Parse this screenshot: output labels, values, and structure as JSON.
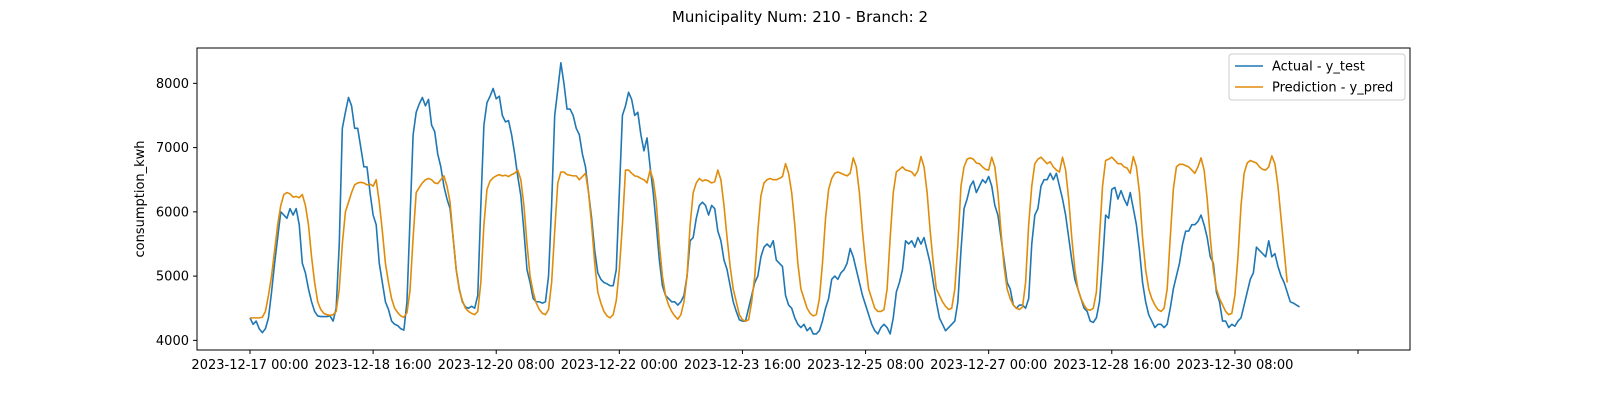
{
  "chart_data": {
    "type": "line",
    "title": "Municipality Num: 210 - Branch: 2",
    "xlabel": "",
    "ylabel": "consumption_kwh",
    "x_start": "2023-12-17 00:00",
    "x_step_hours": 1,
    "ylim": [
      3850,
      8550
    ],
    "yticks": [
      4000,
      5000,
      6000,
      7000,
      8000
    ],
    "xtick_labels": [
      "2023-12-17 00:00",
      "2023-12-18 16:00",
      "2023-12-20 08:00",
      "2023-12-22 00:00",
      "2023-12-23 16:00",
      "2023-12-25 08:00",
      "2023-12-27 00:00",
      "2023-12-28 16:00",
      "2023-12-30 08:00",
      ""
    ],
    "legend_position": "upper right",
    "grid": false,
    "series": [
      {
        "name": "Actual - y_test",
        "color": "#1f77b4",
        "values": [
          4350,
          4250,
          4300,
          4180,
          4120,
          4180,
          4350,
          4750,
          5200,
          5600,
          6000,
          5950,
          5900,
          6050,
          5950,
          6050,
          5800,
          5200,
          5050,
          4800,
          4600,
          4450,
          4380,
          4370,
          4370,
          4370,
          4380,
          4300,
          4500,
          5500,
          7300,
          7550,
          7780,
          7650,
          7300,
          7300,
          7000,
          6700,
          6700,
          6300,
          5950,
          5800,
          5200,
          4900,
          4600,
          4480,
          4300,
          4250,
          4230,
          4180,
          4160,
          4600,
          5900,
          7200,
          7550,
          7680,
          7780,
          7650,
          7750,
          7350,
          7250,
          6900,
          6700,
          6400,
          6200,
          6050,
          5600,
          5100,
          4800,
          4600,
          4520,
          4500,
          4530,
          4500,
          4700,
          6100,
          7350,
          7700,
          7800,
          7920,
          7760,
          7800,
          7500,
          7400,
          7420,
          7200,
          6900,
          6550,
          6250,
          5700,
          5100,
          4900,
          4650,
          4600,
          4600,
          4580,
          4600,
          5000,
          6100,
          7500,
          7900,
          8320,
          8000,
          7600,
          7600,
          7500,
          7300,
          7200,
          6900,
          6700,
          6300,
          5900,
          5400,
          5050,
          4950,
          4900,
          4880,
          4850,
          4850,
          5100,
          6300,
          7500,
          7650,
          7860,
          7750,
          7500,
          7550,
          7200,
          6950,
          7150,
          6700,
          6300,
          5800,
          5250,
          4850,
          4700,
          4650,
          4600,
          4600,
          4550,
          4600,
          4700,
          5000,
          5550,
          5600,
          5900,
          6100,
          6150,
          6100,
          5950,
          6100,
          6050,
          5700,
          5550,
          5250,
          5100,
          4850,
          4600,
          4450,
          4320,
          4300,
          4300,
          4500,
          4700,
          4900,
          5000,
          5300,
          5450,
          5500,
          5450,
          5550,
          5250,
          5200,
          5150,
          4700,
          4550,
          4500,
          4350,
          4250,
          4200,
          4250,
          4150,
          4200,
          4100,
          4100,
          4150,
          4300,
          4500,
          4650,
          4950,
          5000,
          4950,
          5050,
          5100,
          5200,
          5430,
          5300,
          5100,
          4900,
          4700,
          4550,
          4400,
          4250,
          4150,
          4100,
          4200,
          4250,
          4200,
          4100,
          4350,
          4750,
          4900,
          5100,
          5550,
          5500,
          5550,
          5450,
          5600,
          5500,
          5600,
          5400,
          5200,
          4900,
          4600,
          4350,
          4250,
          4150,
          4200,
          4250,
          4300,
          4600,
          5400,
          6050,
          6200,
          6400,
          6480,
          6300,
          6400,
          6500,
          6450,
          6550,
          6400,
          6100,
          5950,
          5600,
          5250,
          4900,
          4800,
          4550,
          4500,
          4550,
          4550,
          4500,
          4650,
          5500,
          5950,
          6050,
          6400,
          6500,
          6500,
          6600,
          6500,
          6600,
          6400,
          6200,
          5950,
          5600,
          5250,
          4950,
          4800,
          4650,
          4500,
          4450,
          4300,
          4280,
          4350,
          4600,
          5200,
          5950,
          5900,
          6350,
          6380,
          6200,
          6330,
          6200,
          6100,
          6300,
          6050,
          5800,
          5400,
          4900,
          4600,
          4400,
          4300,
          4200,
          4250,
          4250,
          4200,
          4250,
          4500,
          4800,
          5000,
          5200,
          5500,
          5700,
          5700,
          5800,
          5800,
          5850,
          5950,
          5800,
          5600,
          5300,
          5200,
          4750,
          4600,
          4300,
          4300,
          4200,
          4250,
          4220,
          4300,
          4350,
          4550,
          4750,
          4950,
          5050,
          5450,
          5400,
          5350,
          5300,
          5550,
          5300,
          5350,
          5150,
          5000,
          4900,
          4750,
          4600,
          4580,
          4550,
          4520
        ]
      },
      {
        "name": "Prediction - y_pred",
        "color": "#e08c0b",
        "values": [
          4350,
          4350,
          4350,
          4350,
          4360,
          4450,
          4700,
          5000,
          5400,
          5800,
          6100,
          6270,
          6300,
          6280,
          6230,
          6240,
          6220,
          6270,
          6100,
          5800,
          5300,
          4900,
          4600,
          4480,
          4420,
          4400,
          4390,
          4400,
          4450,
          4800,
          5500,
          6000,
          6150,
          6300,
          6420,
          6450,
          6460,
          6450,
          6420,
          6430,
          6400,
          6500,
          6150,
          5700,
          5200,
          4900,
          4650,
          4500,
          4430,
          4380,
          4360,
          4430,
          4780,
          5600,
          6300,
          6380,
          6450,
          6500,
          6520,
          6500,
          6450,
          6440,
          6500,
          6560,
          6400,
          6150,
          5600,
          5100,
          4780,
          4620,
          4500,
          4450,
          4420,
          4400,
          4450,
          4900,
          5800,
          6350,
          6480,
          6530,
          6560,
          6580,
          6560,
          6570,
          6550,
          6580,
          6600,
          6650,
          6500,
          6100,
          5500,
          5000,
          4750,
          4580,
          4480,
          4420,
          4400,
          4480,
          4900,
          5700,
          6450,
          6620,
          6620,
          6580,
          6570,
          6560,
          6560,
          6500,
          6550,
          6600,
          6300,
          5800,
          5200,
          4750,
          4580,
          4450,
          4380,
          4350,
          4400,
          4620,
          5100,
          5800,
          6650,
          6650,
          6600,
          6560,
          6550,
          6520,
          6500,
          6450,
          6650,
          6500,
          6150,
          5500,
          5000,
          4700,
          4550,
          4450,
          4380,
          4330,
          4400,
          4600,
          5000,
          5800,
          6300,
          6450,
          6520,
          6480,
          6500,
          6480,
          6450,
          6470,
          6650,
          6500,
          6100,
          5600,
          5150,
          4800,
          4600,
          4400,
          4320,
          4300,
          4320,
          4600,
          5000,
          5700,
          6250,
          6450,
          6500,
          6520,
          6500,
          6500,
          6520,
          6550,
          6750,
          6600,
          6300,
          5800,
          5200,
          4800,
          4650,
          4500,
          4420,
          4380,
          4400,
          4650,
          5200,
          5900,
          6350,
          6520,
          6600,
          6620,
          6600,
          6580,
          6560,
          6600,
          6840,
          6700,
          6300,
          5700,
          5200,
          4800,
          4650,
          4500,
          4450,
          4450,
          4480,
          4800,
          5600,
          6300,
          6620,
          6660,
          6700,
          6650,
          6640,
          6620,
          6560,
          6640,
          6860,
          6700,
          6300,
          5700,
          5200,
          4800,
          4700,
          4600,
          4530,
          4480,
          4500,
          4800,
          5500,
          6400,
          6700,
          6820,
          6840,
          6820,
          6760,
          6750,
          6700,
          6660,
          6650,
          6850,
          6700,
          6300,
          5700,
          5150,
          4800,
          4650,
          4550,
          4500,
          4480,
          4520,
          4900,
          5800,
          6400,
          6750,
          6820,
          6850,
          6800,
          6750,
          6780,
          6700,
          6650,
          6620,
          6850,
          6650,
          6200,
          5600,
          5100,
          4800,
          4650,
          4550,
          4480,
          4470,
          4500,
          4750,
          5600,
          6400,
          6800,
          6820,
          6850,
          6800,
          6750,
          6750,
          6700,
          6680,
          6600,
          6860,
          6700,
          6300,
          5600,
          5100,
          4800,
          4650,
          4550,
          4480,
          4450,
          4500,
          4800,
          5600,
          6350,
          6700,
          6740,
          6740,
          6720,
          6700,
          6650,
          6600,
          6700,
          6840,
          6650,
          6200,
          5600,
          5100,
          4800,
          4650,
          4550,
          4450,
          4400,
          4420,
          4700,
          5300,
          6100,
          6600,
          6760,
          6800,
          6780,
          6760,
          6700,
          6660,
          6650,
          6700,
          6870,
          6750,
          6400,
          5900,
          5400,
          4900
        ]
      }
    ]
  }
}
